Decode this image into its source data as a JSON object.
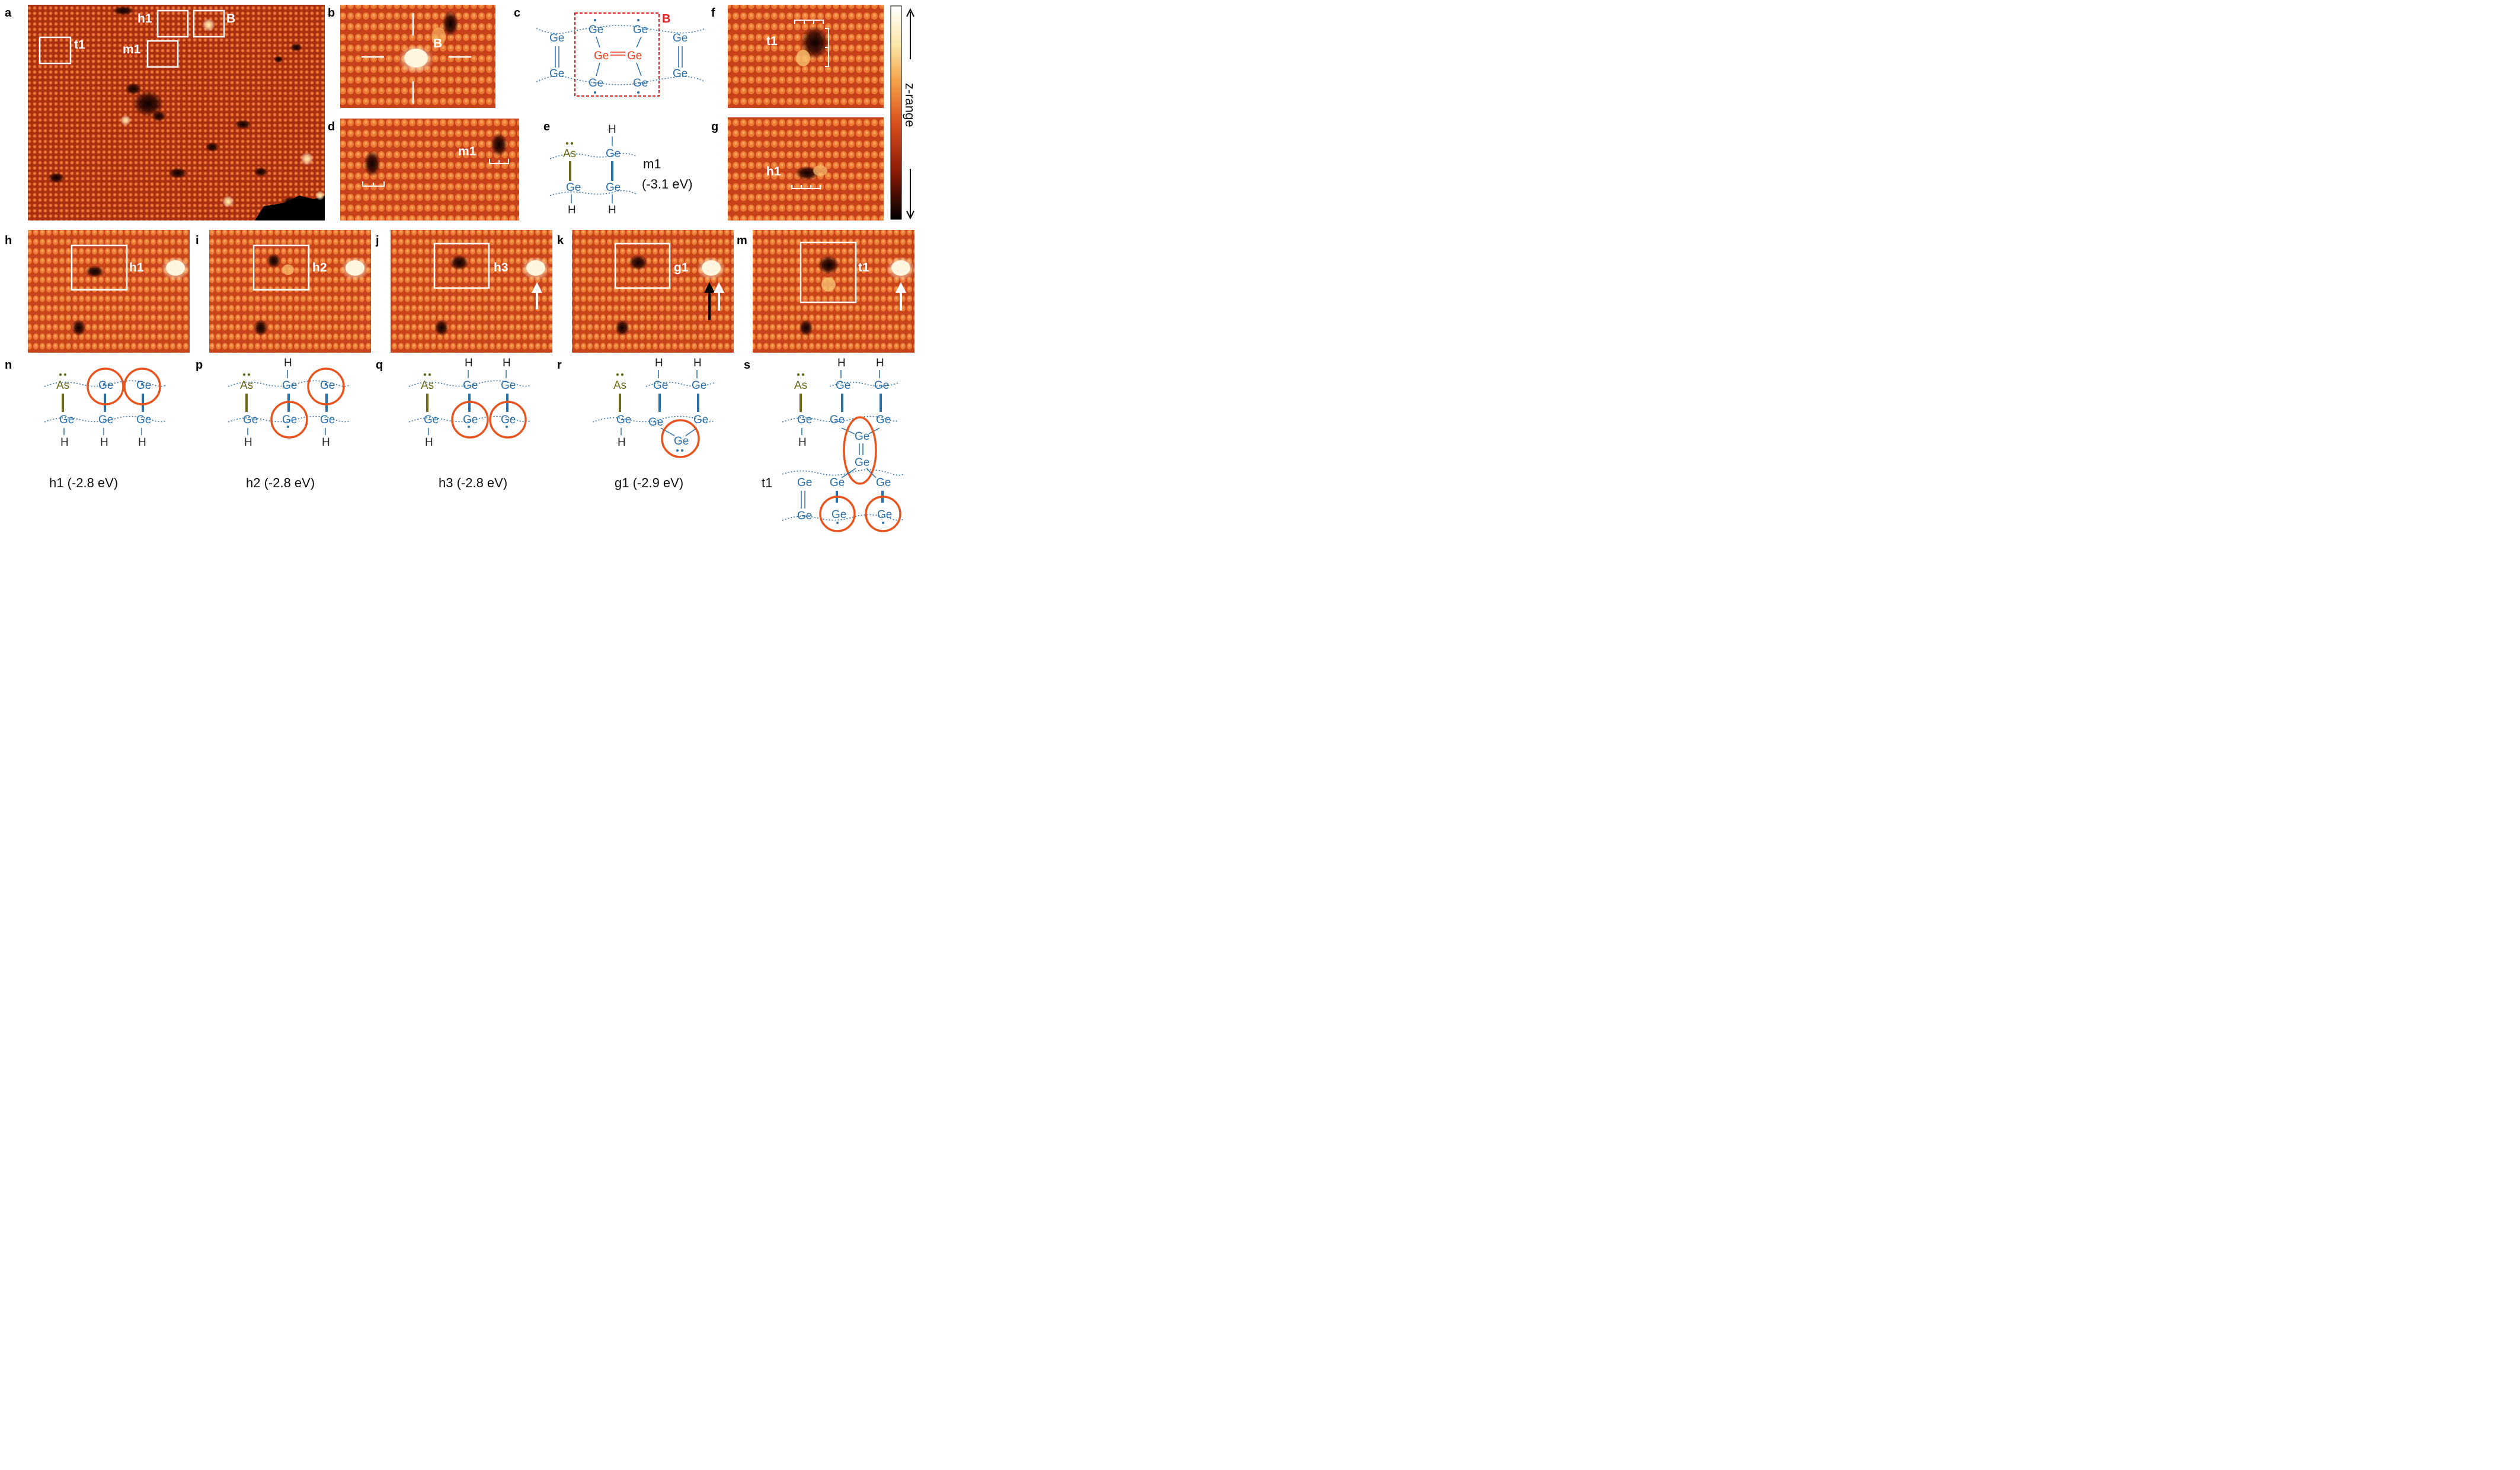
{
  "panel_letters": {
    "a": "a",
    "b": "b",
    "c": "c",
    "d": "d",
    "e": "e",
    "f": "f",
    "g": "g",
    "h": "h",
    "i": "i",
    "j": "j",
    "k": "k",
    "m": "m",
    "n": "n",
    "p": "p",
    "q": "q",
    "r": "r",
    "s": "s"
  },
  "stm_labels": {
    "a_h1": "h1",
    "a_B": "B",
    "a_t1": "t1",
    "a_m1": "m1",
    "b_B": "B",
    "d_m1": "m1",
    "f_t1": "t1",
    "g_h1": "h1",
    "h_h1": "h1",
    "i_h2": "h2",
    "j_h3": "h3",
    "k_g1": "g1",
    "m_t1": "t1"
  },
  "atoms": {
    "ge": "Ge",
    "as": "As",
    "h": "H"
  },
  "panel_c": {
    "label_B": "B"
  },
  "panel_e": {
    "name": "m1",
    "energy": "(-3.1 eV)"
  },
  "captions": {
    "n": "h1 (-2.8 eV)",
    "p": "h2 (-2.8 eV)",
    "q": "h3 (-2.8 eV)",
    "r": "g1 (-2.9 eV)",
    "s": "t1"
  },
  "colorbar": {
    "label": "z-range"
  },
  "colors": {
    "stm_base": "#d0451c",
    "stm_bright": "#f08a3c",
    "stm_dark": "#2a0800",
    "ge_blue": "#2b6fa8",
    "as_olive": "#6b6a1a",
    "highlight_orange": "#e8541e",
    "dimer_red": "#e8411b"
  }
}
